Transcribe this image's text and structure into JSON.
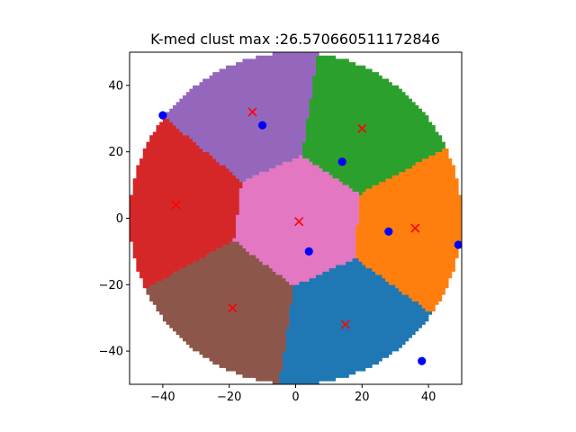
{
  "chart_data": {
    "type": "scatter",
    "title": "K-med clust max :26.570660511172846",
    "xlabel": "",
    "ylabel": "",
    "xlim": [
      -50,
      50
    ],
    "ylim": [
      -50,
      50
    ],
    "xticks": [
      -40,
      -20,
      0,
      20,
      40
    ],
    "yticks": [
      -40,
      -20,
      0,
      20,
      40
    ],
    "xtick_labels": [
      "−40",
      "−20",
      "0",
      "20",
      "40"
    ],
    "ytick_labels": [
      "−40",
      "−20",
      "0",
      "20",
      "40"
    ],
    "grid": false,
    "legend": "none",
    "disk": {
      "center": [
        0,
        0
      ],
      "radius": 50
    },
    "clusters": [
      {
        "color": "#1f77b4",
        "medoid": [
          15,
          -32
        ]
      },
      {
        "color": "#ff7f0e",
        "medoid": [
          36,
          -3
        ]
      },
      {
        "color": "#2ca02c",
        "medoid": [
          20,
          27
        ]
      },
      {
        "color": "#d62728",
        "medoid": [
          -36,
          4
        ]
      },
      {
        "color": "#9467bd",
        "medoid": [
          -13,
          32
        ]
      },
      {
        "color": "#8c564b",
        "medoid": [
          -19,
          -27
        ]
      },
      {
        "color": "#e377c2",
        "medoid": [
          1,
          -1
        ]
      }
    ],
    "medoid_marker": {
      "shape": "x",
      "color": "#ff0000"
    },
    "blue_points": {
      "color": "#0000ff",
      "points": [
        [
          -40,
          31
        ],
        [
          -10,
          28
        ],
        [
          14,
          17
        ],
        [
          28,
          -4
        ],
        [
          49,
          -8
        ],
        [
          4,
          -10
        ],
        [
          38,
          -43
        ]
      ]
    }
  }
}
